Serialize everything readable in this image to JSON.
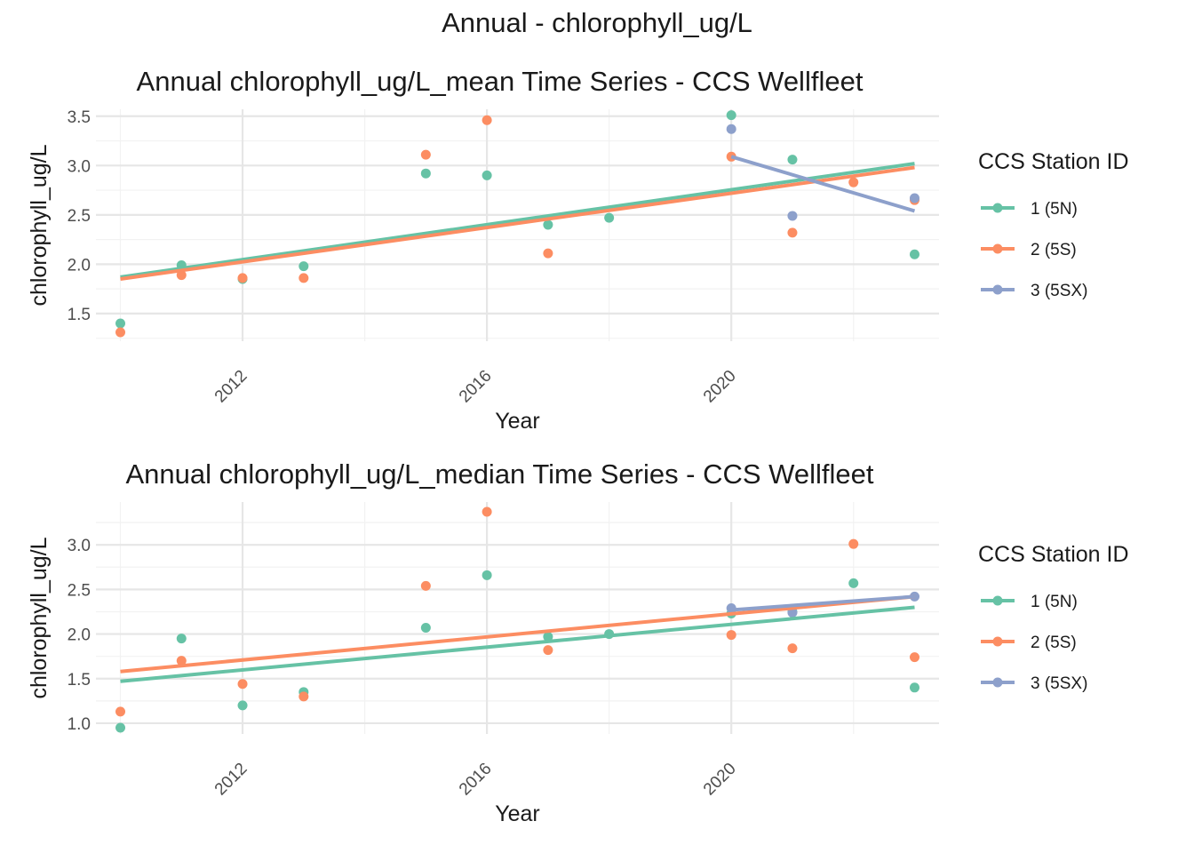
{
  "suptitle": "Annual - chlorophyll_ug/L",
  "colors": {
    "1 (5N)": "#66C2A5",
    "2 (5S)": "#FC8D62",
    "3 (5SX)": "#8DA0CB",
    "grid_major": "#e6e6e6",
    "grid_minor": "#f2f2f2"
  },
  "chart_data": [
    {
      "type": "scatter",
      "title": "Annual chlorophyll_ug/L_mean Time Series - CCS Wellfleet",
      "xlabel": "Year",
      "ylabel": "chlorophyll_ug/L",
      "xlim": [
        2009.6,
        2023.4
      ],
      "ylim": [
        1.22,
        3.57
      ],
      "xticks": [
        2012,
        2016,
        2020
      ],
      "yticks": [
        1.5,
        2.0,
        2.5,
        3.0,
        3.5
      ],
      "ytick_labels": [
        "1.5",
        "2.0",
        "2.5",
        "3.0",
        "3.5"
      ],
      "grid": true,
      "legend": {
        "title": "CCS Station ID",
        "position": "right"
      },
      "series": [
        {
          "name": "1 (5N)",
          "x": [
            2010,
            2011,
            2012,
            2013,
            2015,
            2016,
            2017,
            2018,
            2020,
            2021,
            2023
          ],
          "y": [
            1.4,
            1.99,
            1.85,
            1.98,
            2.92,
            2.9,
            2.4,
            2.47,
            3.51,
            3.06,
            2.1
          ],
          "trend": [
            [
              2010,
              1.87
            ],
            [
              2023,
              3.02
            ]
          ]
        },
        {
          "name": "2 (5S)",
          "x": [
            2010,
            2011,
            2012,
            2013,
            2015,
            2016,
            2017,
            2020,
            2021,
            2022,
            2023
          ],
          "y": [
            1.31,
            1.89,
            1.86,
            1.86,
            3.11,
            3.46,
            2.11,
            3.09,
            2.32,
            2.83,
            2.65
          ],
          "trend": [
            [
              2010,
              1.85
            ],
            [
              2023,
              2.98
            ]
          ]
        },
        {
          "name": "3 (5SX)",
          "x": [
            2020,
            2021,
            2023
          ],
          "y": [
            3.37,
            2.49,
            2.67
          ],
          "trend": [
            [
              2020,
              3.09
            ],
            [
              2023,
              2.54
            ]
          ]
        }
      ]
    },
    {
      "type": "scatter",
      "title": "Annual chlorophyll_ug/L_median Time Series - CCS Wellfleet",
      "xlabel": "Year",
      "ylabel": "chlorophyll_ug/L",
      "xlim": [
        2009.6,
        2023.4
      ],
      "ylim": [
        0.88,
        3.48
      ],
      "xticks": [
        2012,
        2016,
        2020
      ],
      "yticks": [
        1.0,
        1.5,
        2.0,
        2.5,
        3.0
      ],
      "ytick_labels": [
        "1.0",
        "1.5",
        "2.0",
        "2.5",
        "3.0"
      ],
      "grid": true,
      "legend": {
        "title": "CCS Station ID",
        "position": "right"
      },
      "series": [
        {
          "name": "1 (5N)",
          "x": [
            2010,
            2011,
            2012,
            2013,
            2015,
            2016,
            2017,
            2018,
            2020,
            2021,
            2022,
            2023
          ],
          "y": [
            0.95,
            1.95,
            1.2,
            1.35,
            2.07,
            2.66,
            1.97,
            2.0,
            2.23,
            2.25,
            2.57,
            1.4
          ],
          "trend": [
            [
              2010,
              1.47
            ],
            [
              2023,
              2.3
            ]
          ]
        },
        {
          "name": "2 (5S)",
          "x": [
            2010,
            2011,
            2012,
            2013,
            2015,
            2016,
            2017,
            2020,
            2021,
            2022,
            2023
          ],
          "y": [
            1.13,
            1.7,
            1.44,
            1.3,
            2.54,
            3.37,
            1.82,
            1.99,
            1.84,
            3.01,
            1.74
          ],
          "trend": [
            [
              2010,
              1.58
            ],
            [
              2023,
              2.42
            ]
          ]
        },
        {
          "name": "3 (5SX)",
          "x": [
            2020,
            2021,
            2023
          ],
          "y": [
            2.29,
            2.24,
            2.42
          ],
          "trend": [
            [
              2020,
              2.27
            ],
            [
              2023,
              2.42
            ]
          ]
        }
      ]
    }
  ]
}
